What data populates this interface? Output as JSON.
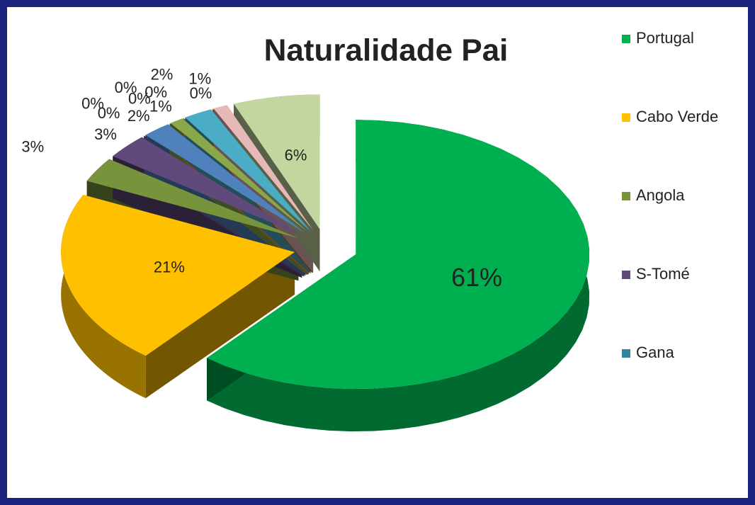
{
  "chart_data": {
    "type": "pie3d",
    "title": "Naturalidade Pai",
    "categories": [
      "Portugal",
      "Cabo Verde",
      "Angola",
      "S-Tomé",
      "Gana",
      null,
      null,
      null,
      null,
      null,
      null,
      null,
      null,
      null,
      null
    ],
    "values": [
      61,
      21,
      3,
      3,
      0,
      0,
      2,
      0,
      0,
      1,
      0,
      2,
      0,
      1,
      6
    ],
    "value_labels": [
      "61%",
      "21%",
      "3%",
      "3%",
      "0%",
      "0%",
      "2%",
      "0%",
      "0%",
      "1%",
      "0%",
      "2%",
      "0%",
      "1%",
      "6%"
    ],
    "colors": [
      "#00b050",
      "#ffc000",
      "#77933c",
      "#604a7b",
      "#31859c",
      "#8064a2",
      "#4f81bd",
      "#c0504d",
      "#9bbb59",
      "#8aa84a",
      "#f79646",
      "#4bacc6",
      "#e46c0a",
      "#e6b9b8",
      "#c4d6a0"
    ],
    "legend": "right"
  }
}
